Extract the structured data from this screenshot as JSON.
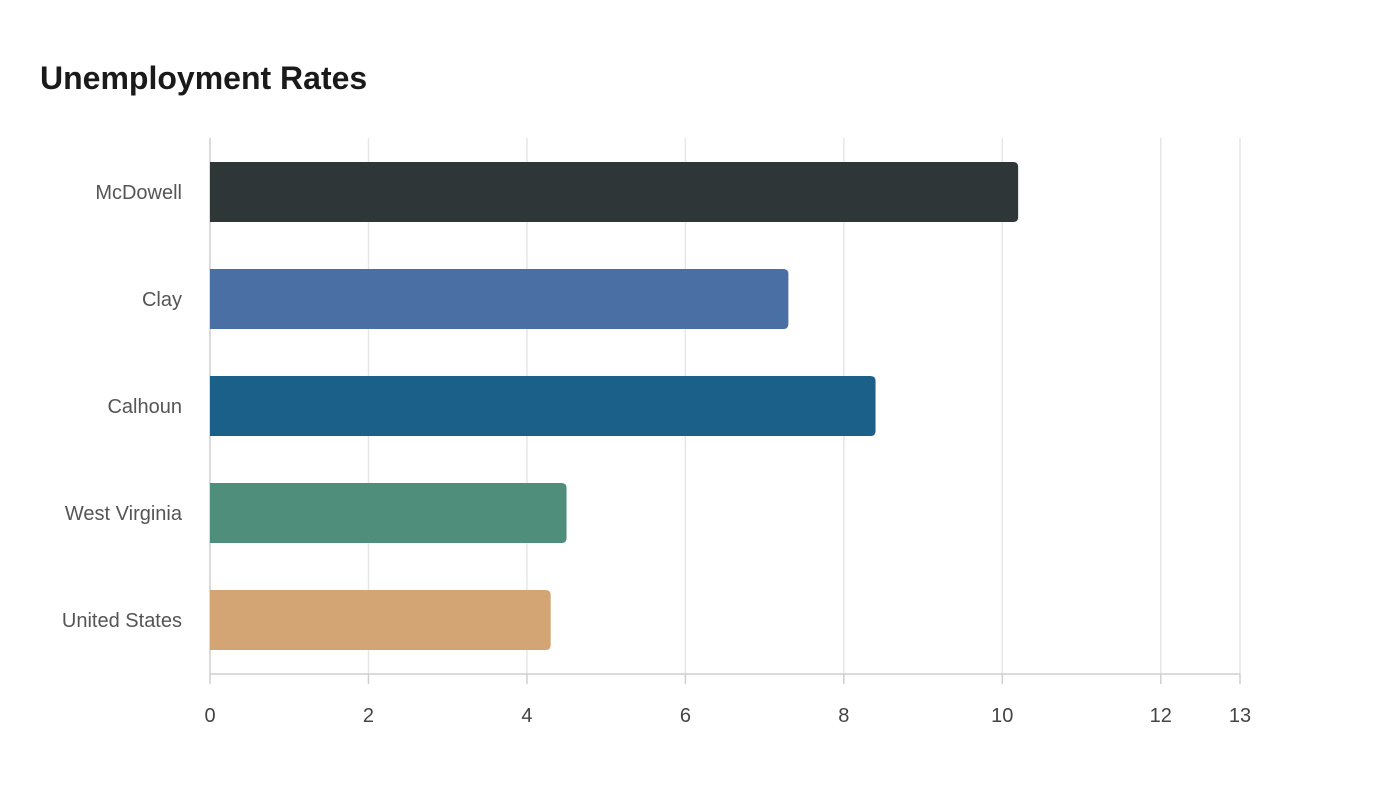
{
  "chart_data": {
    "type": "bar",
    "orientation": "horizontal",
    "title": "Unemployment Rates",
    "xlabel": "",
    "ylabel": "",
    "categories": [
      "McDowell",
      "Clay",
      "Calhoun",
      "West Virginia",
      "United States"
    ],
    "values": [
      10.2,
      7.3,
      8.4,
      4.5,
      4.3
    ],
    "colors": [
      "#2e3638",
      "#4a6fa5",
      "#1a6089",
      "#4f8e7b",
      "#d4a574"
    ],
    "xlim": [
      0,
      13
    ],
    "xticks": [
      0,
      2,
      4,
      6,
      8,
      10,
      12,
      13
    ],
    "grid": true,
    "legend": "none"
  }
}
